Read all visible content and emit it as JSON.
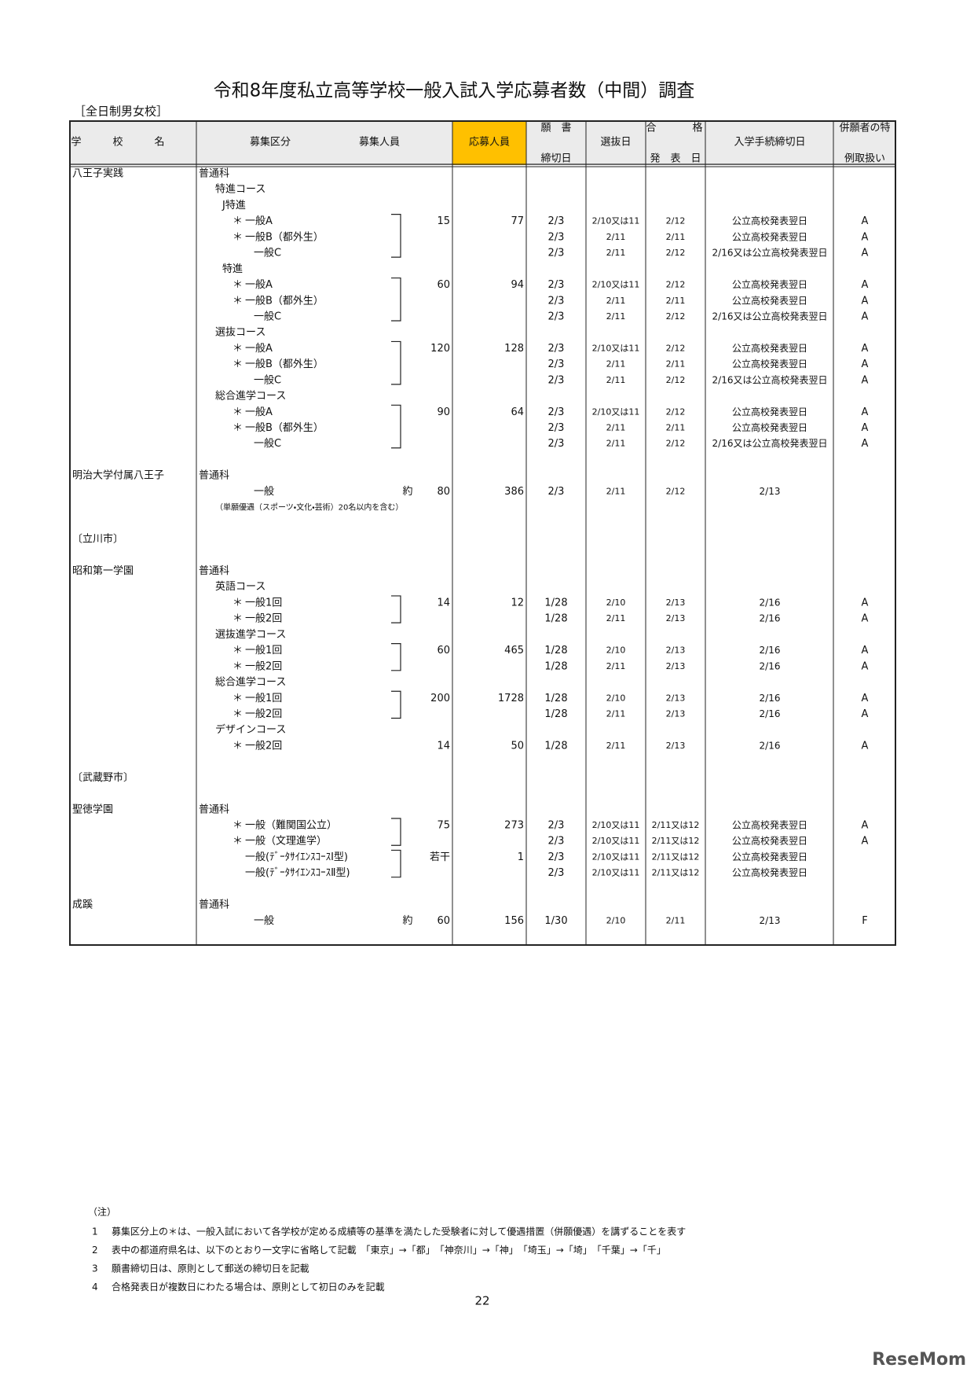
{
  "title": "令和8年度私立高等学校一般入試入学応募者数（中間）調査",
  "subtitle": "［全日制男女校］",
  "table": {
    "header": {
      "school": "学校名",
      "kubun": "募集区分",
      "capacity": "募集人員",
      "applicants": "応募人員",
      "deadline_top": "願　書",
      "deadline_bottom": "締切日",
      "exam": "選抜日",
      "announce_left": "合",
      "announce_right": "格",
      "announce_bottom": "発　表　日",
      "procedure": "入学手続締切日",
      "special_top": "併願者の特",
      "special_bottom": "例取扱い"
    },
    "rows": [
      {
        "school": "八王子実践",
        "course": "普通科"
      },
      {
        "course": "特進コース"
      },
      {
        "course": "J特進"
      },
      {
        "mark": "＊",
        "course": "一般A",
        "capacity": 15,
        "applicants": 77,
        "deadline": "2/3",
        "exam": "2/10又は11",
        "announce": "2/12",
        "procedure": "公立高校発表翌日",
        "special": "A"
      },
      {
        "mark": "＊",
        "course": "一般B（都外生）",
        "deadline": "2/3",
        "exam": "2/11",
        "announce": "2/11",
        "procedure": "公立高校発表翌日",
        "special": "A"
      },
      {
        "course": "一般C",
        "deadline": "2/3",
        "exam": "2/11",
        "announce": "2/12",
        "procedure": "2/16又は公立高校発表翌日",
        "special": "A"
      },
      {
        "course": "特進"
      },
      {
        "mark": "＊",
        "course": "一般A",
        "capacity": 60,
        "applicants": 94,
        "deadline": "2/3",
        "exam": "2/10又は11",
        "announce": "2/12",
        "procedure": "公立高校発表翌日",
        "special": "A"
      },
      {
        "mark": "＊",
        "course": "一般B（都外生）",
        "deadline": "2/3",
        "exam": "2/11",
        "announce": "2/11",
        "procedure": "公立高校発表翌日",
        "special": "A"
      },
      {
        "course": "一般C",
        "deadline": "2/3",
        "exam": "2/11",
        "announce": "2/12",
        "procedure": "2/16又は公立高校発表翌日",
        "special": "A"
      },
      {
        "course": "選抜コース"
      },
      {
        "mark": "＊",
        "course": "一般A",
        "capacity": 120,
        "applicants": 128,
        "deadline": "2/3",
        "exam": "2/10又は11",
        "announce": "2/12",
        "procedure": "公立高校発表翌日",
        "special": "A"
      },
      {
        "mark": "＊",
        "course": "一般B（都外生）",
        "deadline": "2/3",
        "exam": "2/11",
        "announce": "2/11",
        "procedure": "公立高校発表翌日",
        "special": "A"
      },
      {
        "course": "一般C",
        "deadline": "2/3",
        "exam": "2/11",
        "announce": "2/12",
        "procedure": "2/16又は公立高校発表翌日",
        "special": "A"
      },
      {
        "course": "総合進学コース"
      },
      {
        "mark": "＊",
        "course": "一般A",
        "capacity": 90,
        "applicants": 64,
        "deadline": "2/3",
        "exam": "2/10又は11",
        "announce": "2/12",
        "procedure": "公立高校発表翌日",
        "special": "A"
      },
      {
        "mark": "＊",
        "course": "一般B（都外生）",
        "deadline": "2/3",
        "exam": "2/11",
        "announce": "2/11",
        "procedure": "公立高校発表翌日",
        "special": "A"
      },
      {
        "course": "一般C",
        "deadline": "2/3",
        "exam": "2/11",
        "announce": "2/12",
        "procedure": "2/16又は公立高校発表翌日",
        "special": "A"
      },
      {
        "school": "明治大学付属八王子",
        "course": "普通科"
      },
      {
        "course": "一般",
        "about": "約",
        "capacity": 80,
        "applicants": 386,
        "deadline": "2/3",
        "exam": "2/11",
        "announce": "2/12",
        "procedure": "2/13"
      },
      {
        "note": "（単願優遇（スポーツ・文化・芸術）20名以内を含む）"
      },
      {
        "region": "〔立川市〕"
      },
      {
        "school": "昭和第一学園",
        "course": "普通科"
      },
      {
        "course": "英語コース"
      },
      {
        "mark": "＊",
        "course": "一般1回",
        "capacity": 14,
        "applicants": 12,
        "deadline": "1/28",
        "exam": "2/10",
        "announce": "2/13",
        "procedure": "2/16",
        "special": "A"
      },
      {
        "mark": "＊",
        "course": "一般2回",
        "deadline": "1/28",
        "exam": "2/11",
        "announce": "2/13",
        "procedure": "2/16",
        "special": "A"
      },
      {
        "course": "選抜進学コース"
      },
      {
        "mark": "＊",
        "course": "一般1回",
        "capacity": 60,
        "applicants": 465,
        "deadline": "1/28",
        "exam": "2/10",
        "announce": "2/13",
        "procedure": "2/16",
        "special": "A"
      },
      {
        "mark": "＊",
        "course": "一般2回",
        "deadline": "1/28",
        "exam": "2/11",
        "announce": "2/13",
        "procedure": "2/16",
        "special": "A"
      },
      {
        "course": "総合進学コース"
      },
      {
        "mark": "＊",
        "course": "一般1回",
        "capacity": 200,
        "applicants": 1728,
        "deadline": "1/28",
        "exam": "2/10",
        "announce": "2/13",
        "procedure": "2/16",
        "special": "A"
      },
      {
        "mark": "＊",
        "course": "一般2回",
        "deadline": "1/28",
        "exam": "2/11",
        "announce": "2/13",
        "procedure": "2/16",
        "special": "A"
      },
      {
        "course": "デザインコース"
      },
      {
        "mark": "＊",
        "course": "一般2回",
        "capacity": 14,
        "applicants": 50,
        "deadline": "1/28",
        "exam": "2/11",
        "announce": "2/13",
        "procedure": "2/16",
        "special": "A"
      },
      {
        "region": "〔武蔵野市〕"
      },
      {
        "school": "聖徳学園",
        "course": "普通科"
      },
      {
        "mark": "＊",
        "course": "一般（難関国公立）",
        "capacity": 75,
        "applicants": 273,
        "deadline": "2/3",
        "exam": "2/10又は11",
        "announce": "2/11又は12",
        "procedure": "公立高校発表翌日",
        "special": "A"
      },
      {
        "mark": "＊",
        "course": "一般（文理進学）",
        "deadline": "2/3",
        "exam": "2/10又は11",
        "announce": "2/11又は12",
        "procedure": "公立高校発表翌日",
        "special": "A"
      },
      {
        "course": "一般(ﾃﾞｰﾀｻｲｴﾝｽｺｰｽⅠ型)",
        "capacity": "若干",
        "applicants": 1,
        "deadline": "2/3",
        "exam": "2/10又は11",
        "announce": "2/11又は12",
        "procedure": "公立高校発表翌日"
      },
      {
        "course": "一般(ﾃﾞｰﾀｻｲｴﾝｽｺｰｽⅡ型)",
        "deadline": "2/3",
        "exam": "2/10又は11",
        "announce": "2/11又は12",
        "procedure": "公立高校発表翌日"
      },
      {
        "school": "成蹊",
        "course": "普通科"
      },
      {
        "course": "一般",
        "about": "約",
        "capacity": 60,
        "applicants": 156,
        "deadline": "1/30",
        "exam": "2/10",
        "announce": "2/11",
        "procedure": "2/13",
        "special": "F"
      }
    ]
  },
  "notes": {
    "label": "（注）",
    "items": [
      {
        "num": "1",
        "text": "募集区分上の＊は、一般入試において各学校が定める成績等の基準を満たした受験者に対して優遇措置（併願優遇）を講ずることを表す"
      },
      {
        "num": "2",
        "text": "表中の都道府県名は、以下のとおり一文字に省略して記載　「東京」→「都」　「神奈川」→「神」　「埼玉」→「埼」　「千葉」→「千」"
      },
      {
        "num": "3",
        "text": "願書締切日は、原則として郵送の締切日を記載"
      },
      {
        "num": "4",
        "text": "合格発表日が複数日にわたる場合は、原則として初日のみを記載"
      }
    ]
  },
  "page_number": "22",
  "watermark": "ReseMom"
}
